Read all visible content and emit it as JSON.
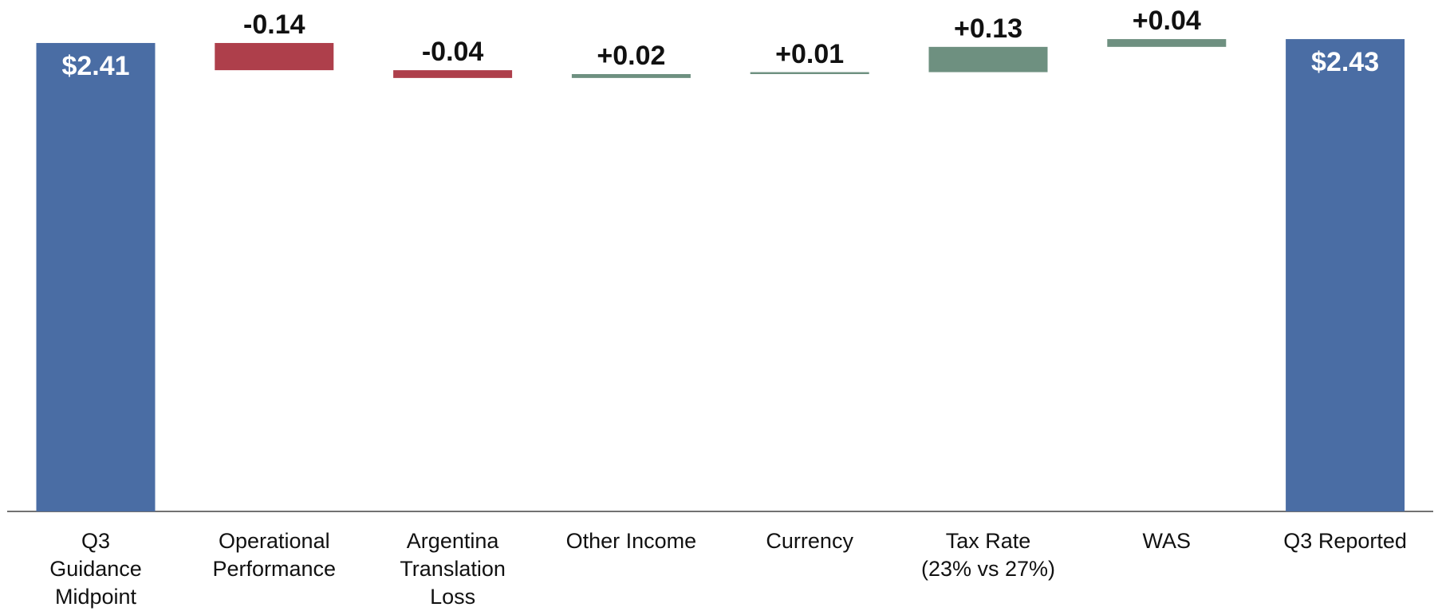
{
  "chart_data": {
    "type": "waterfall",
    "categories": [
      "Q3\nGuidance\nMidpoint",
      "Operational\nPerformance",
      "Argentina\nTranslation\nLoss",
      "Other Income",
      "Currency",
      "Tax Rate\n(23% vs 27%)",
      "WAS",
      "Q3 Reported"
    ],
    "values": [
      2.41,
      -0.14,
      -0.04,
      0.02,
      0.01,
      0.13,
      0.04,
      2.43
    ],
    "value_labels": [
      "$2.41",
      "-0.14",
      "-0.04",
      "+0.02",
      "+0.01",
      "+0.13",
      "+0.04",
      "$2.43"
    ],
    "totals": [
      true,
      false,
      false,
      false,
      false,
      false,
      false,
      true
    ],
    "colors": [
      "#4a6da4",
      "#ae3f4b",
      "#ae3f4b",
      "#6e9080",
      "#6e9080",
      "#6e9080",
      "#6e9080",
      "#4a6da4"
    ]
  }
}
